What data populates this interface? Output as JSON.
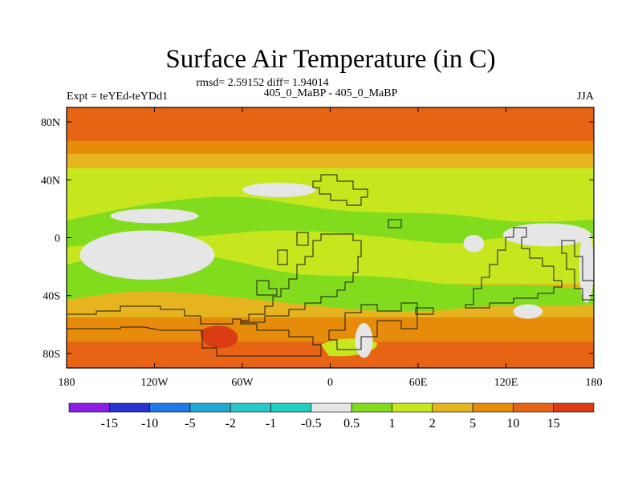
{
  "chart_data": {
    "type": "heatmap",
    "title": "Surface Air Temperature (in C)",
    "stats_line": "rmsd= 2.59152 diff= 1.94014",
    "left_label": "Expt = teYEd-teYDd1",
    "center_label": "405_0_MaBP - 405_0_MaBP",
    "right_label": "JJA",
    "x_ticks": [
      "180",
      "120W",
      "60W",
      "0",
      "60E",
      "120E",
      "180"
    ],
    "x_tick_values": [
      -180,
      -120,
      -60,
      0,
      60,
      120,
      180
    ],
    "y_ticks": [
      "80N",
      "40N",
      "0",
      "40S",
      "80S"
    ],
    "y_tick_values": [
      80,
      40,
      0,
      -40,
      -80
    ],
    "xlim": [
      -180,
      180
    ],
    "ylim": [
      -90,
      90
    ],
    "colorbar": {
      "levels": [
        "-15",
        "-10",
        "-5",
        "-2",
        "-1",
        "-0.5",
        "0.5",
        "1",
        "2",
        "5",
        "10",
        "15"
      ],
      "colors": [
        "#8a1ee6",
        "#2832d2",
        "#1e78e6",
        "#1eaad2",
        "#28c8c8",
        "#1ed2be",
        "#e6e6e6",
        "#82dc1e",
        "#c8e61e",
        "#e6b41e",
        "#e68c0a",
        "#e66414",
        "#dc3c14"
      ]
    },
    "field_bands": [
      {
        "lat_range": [
          90,
          67
        ],
        "level": "10"
      },
      {
        "lat_range": [
          67,
          58
        ],
        "level": "5"
      },
      {
        "lat_range": [
          58,
          48
        ],
        "level": "2"
      },
      {
        "lat_range": [
          48,
          32
        ],
        "level": "1"
      },
      {
        "lat_range": [
          32,
          -32
        ],
        "level": "1"
      },
      {
        "lat_range": [
          -32,
          -55
        ],
        "level": "2"
      },
      {
        "lat_range": [
          -55,
          -72
        ],
        "level": "5"
      },
      {
        "lat_range": [
          -72,
          -90
        ],
        "level": "10"
      }
    ],
    "white_patches": [
      {
        "lon": -125,
        "lat": -12,
        "rx": 46,
        "ry": 17
      },
      {
        "lon": -120,
        "lat": 15,
        "rx": 30,
        "ry": 5
      },
      {
        "lon": -35,
        "lat": 33,
        "rx": 25,
        "ry": 5
      },
      {
        "lon": 148,
        "lat": 2,
        "rx": 30,
        "ry": 8
      },
      {
        "lon": 135,
        "lat": -51,
        "rx": 10,
        "ry": 5
      },
      {
        "lon": 175,
        "lat": -20,
        "rx": 5,
        "ry": 25
      },
      {
        "lon": 23,
        "lat": -71,
        "rx": 6,
        "ry": 12
      },
      {
        "lon": 98,
        "lat": -4,
        "rx": 7,
        "ry": 6
      }
    ]
  }
}
